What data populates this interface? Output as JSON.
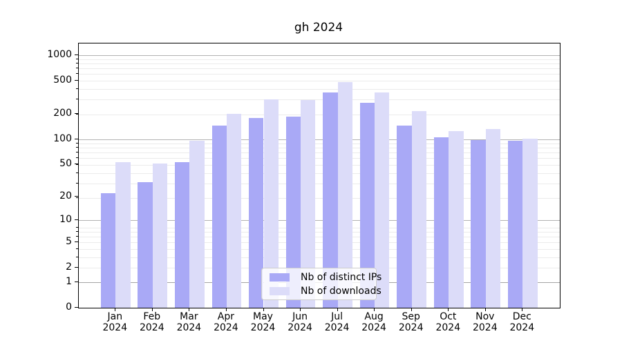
{
  "title": "gh 2024",
  "chart_data": {
    "type": "bar",
    "title": "gh 2024",
    "categories": [
      "Jan 2024",
      "Feb 2024",
      "Mar 2024",
      "Apr 2024",
      "May 2024",
      "Jun 2024",
      "Jul 2024",
      "Aug 2024",
      "Sep 2024",
      "Oct 2024",
      "Nov 2024",
      "Dec 2024"
    ],
    "series": [
      {
        "name": "Nb of distinct IPs",
        "color": "#a9a9f6",
        "values": [
          22,
          30,
          53,
          146,
          179,
          187,
          360,
          271,
          145,
          106,
          97,
          95
        ]
      },
      {
        "name": "Nb of downloads",
        "color": "#dcdcf9",
        "values": [
          53,
          51,
          95,
          200,
          298,
          292,
          478,
          363,
          216,
          126,
          133,
          101
        ]
      }
    ],
    "yscale": "log1p",
    "y_ticks": [
      0,
      1,
      2,
      5,
      10,
      20,
      50,
      100,
      200,
      500,
      1000
    ],
    "y_major_gridlines": [
      1,
      10,
      100,
      1000
    ],
    "ylim": [
      0,
      1380
    ],
    "xlabel": "",
    "ylabel": "",
    "grid": true,
    "legend_position": "lower center"
  }
}
